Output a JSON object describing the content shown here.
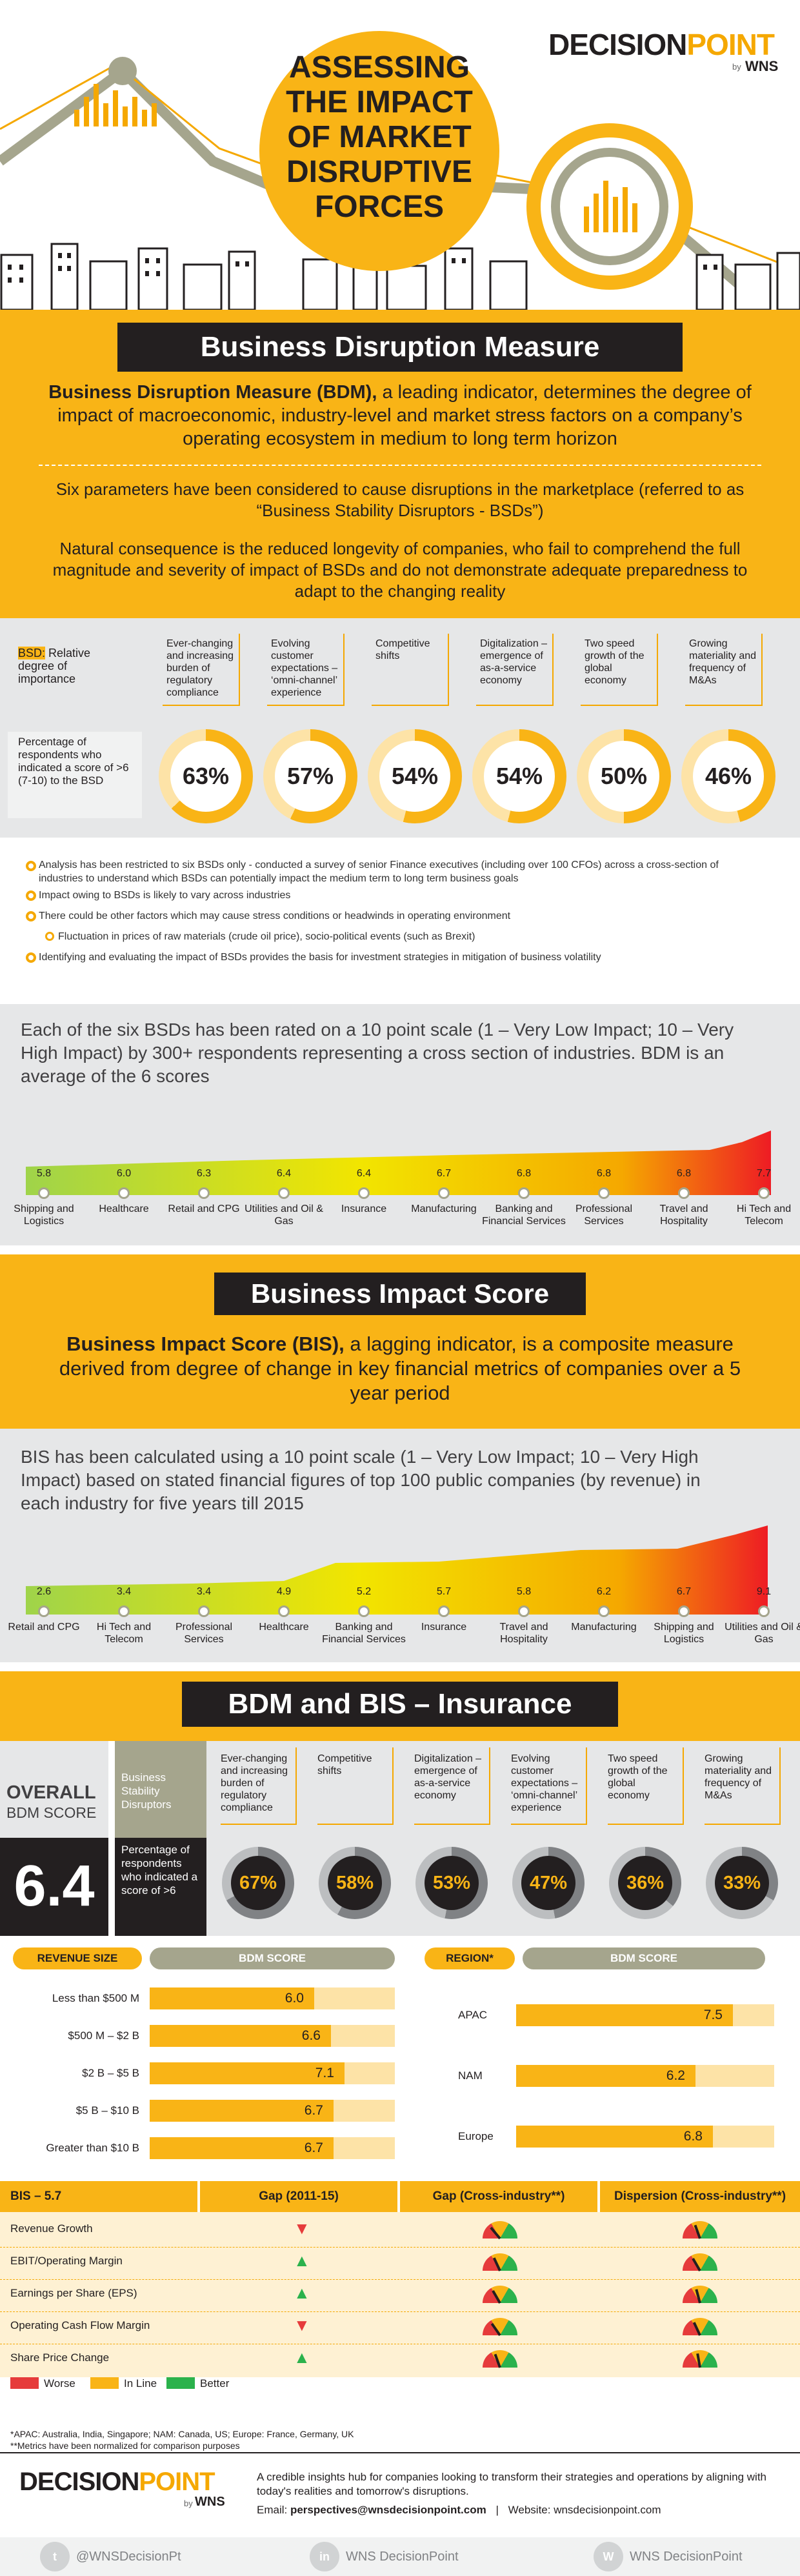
{
  "brand": {
    "name_a": "DECISION",
    "name_b": "POINT",
    "by": "by",
    "wns": "WNS"
  },
  "header": {
    "title": "ASSESSING THE IMPACT OF MARKET DISRUPTIVE FORCES"
  },
  "bdm_section": {
    "heading": "Business Disruption Measure",
    "intro_bold": "Business Disruption Measure (BDM),",
    "intro_rest": " a leading indicator, determines the degree of impact of macroeconomic, industry-level and market stress factors on a company’s operating ecosystem in medium to long term horizon",
    "para2": "Six parameters have been considered to cause disruptions in the marketplace (referred to as “Business Stability Disruptors - BSDs”)",
    "para3": "Natural consequence is the reduced longevity of companies, who fail to comprehend the full magnitude and severity of impact of BSDs and do not demonstrate adequate preparedness to adapt to the changing reality"
  },
  "bsd_panel": {
    "key_label": "BSD:",
    "key_rest": " Relative degree of importance",
    "pct_label": "Percentage of respondents who indicated a score of >6 (7-10) to the BSD",
    "items": [
      {
        "label": "Ever-changing and increasing burden of regulatory compliance",
        "pct": "63%",
        "value": 63
      },
      {
        "label": "Evolving customer expectations – ‘omni-channel’ experience",
        "pct": "57%",
        "value": 57
      },
      {
        "label": "Competitive shifts",
        "pct": "54%",
        "value": 54
      },
      {
        "label": "Digitalization – emergence of as-a-service economy",
        "pct": "54%",
        "value": 54
      },
      {
        "label": "Two speed growth of the global economy",
        "pct": "50%",
        "value": 50
      },
      {
        "label": "Growing materiality and frequency of M&As",
        "pct": "46%",
        "value": 46
      }
    ]
  },
  "notes": [
    "Analysis has been restricted to six BSDs only - conducted a survey of senior Finance executives (including over 100 CFOs) across a cross-section of industries to understand which BSDs can potentially impact the medium term to long term business goals",
    "Impact owing to BSDs is likely to vary across industries",
    "There could be other factors which may cause stress conditions or headwinds in operating environment",
    "Fluctuation in prices of raw materials (crude oil price), socio-political events (such as Brexit)",
    "Identifying and evaluating the impact of BSDs provides the basis for investment strategies in mitigation of business volatility"
  ],
  "bdm_scale": {
    "text": "Each of the six BSDs has been rated on a 10 point scale (1 – Very Low Impact; 10 – Very High Impact) by 300+ respondents representing a cross section of industries. BDM is an average of the 6 scores",
    "industries": [
      "Shipping and Logistics",
      "Healthcare",
      "Retail and CPG",
      "Utilities and Oil & Gas",
      "Insurance",
      "Manufacturing",
      "Banking and Financial Services",
      "Professional Services",
      "Travel and Hospitality",
      "Hi Tech and Telecom"
    ],
    "values": [
      "5.8",
      "6.0",
      "6.3",
      "6.4",
      "6.4",
      "6.7",
      "6.8",
      "6.8",
      "6.8",
      "7.7"
    ]
  },
  "bis_section": {
    "heading": "Business Impact Score",
    "intro_bold": "Business Impact Score (BIS),",
    "intro_rest": " a lagging indicator, is a composite measure derived from degree of change in key financial metrics of companies over a 5 year period"
  },
  "bis_scale": {
    "text": "BIS has been calculated using a 10 point scale (1 – Very Low Impact; 10 – Very High Impact) based on stated financial figures of top 100 public companies (by revenue) in each industry for five years till 2015",
    "industries": [
      "Retail and CPG",
      "Hi Tech and Telecom",
      "Professional Services",
      "Healthcare",
      "Banking and Financial Services",
      "Insurance",
      "Travel and Hospitality",
      "Manufacturing",
      "Shipping and Logistics",
      "Utilities and Oil & Gas"
    ],
    "values": [
      "2.6",
      "3.4",
      "3.4",
      "4.9",
      "5.2",
      "5.7",
      "5.8",
      "6.2",
      "6.7",
      "9.1"
    ]
  },
  "insurance": {
    "heading": "BDM and BIS – Insurance",
    "overall_label_1": "OVERALL",
    "overall_label_2": "BDM SCORE",
    "overall_score": "6.4",
    "bsd_label": "Business Stability Disruptors",
    "pct_label": "Percentage of respondents who indicated a score of >6",
    "items": [
      {
        "label": "Ever-changing and increasing burden of regulatory compliance",
        "pct": "67%",
        "value": 67
      },
      {
        "label": "Competitive shifts",
        "pct": "58%",
        "value": 58
      },
      {
        "label": "Digitalization – emergence of as-a-service economy",
        "pct": "53%",
        "value": 53
      },
      {
        "label": "Evolving customer expectations – ‘omni-channel’ experience",
        "pct": "47%",
        "value": 47
      },
      {
        "label": "Two speed growth of the global economy",
        "pct": "36%",
        "value": 36
      },
      {
        "label": "Growing materiality and frequency of M&As",
        "pct": "33%",
        "value": 33
      }
    ]
  },
  "revenue_chart": {
    "header_left": "REVENUE SIZE",
    "header_right": "BDM SCORE",
    "rows": [
      {
        "label": "Less than $500 M",
        "value": "6.0",
        "num": 6.0
      },
      {
        "label": "$500 M – $2 B",
        "value": "6.6",
        "num": 6.6
      },
      {
        "label": "$2 B – $5 B",
        "value": "7.1",
        "num": 7.1
      },
      {
        "label": "$5 B – $10 B",
        "value": "6.7",
        "num": 6.7
      },
      {
        "label": "Greater than $10 B",
        "value": "6.7",
        "num": 6.7
      }
    ]
  },
  "region_chart": {
    "header_left": "REGION*",
    "header_right": "BDM SCORE",
    "rows": [
      {
        "label": "APAC",
        "value": "7.5",
        "num": 7.5
      },
      {
        "label": "NAM",
        "value": "6.2",
        "num": 6.2
      },
      {
        "label": "Europe",
        "value": "6.8",
        "num": 6.8
      }
    ]
  },
  "bis_table": {
    "col1": "BIS – 5.7",
    "col2": "Gap (2011-15)",
    "col3": "Gap (Cross-industry**)",
    "col4": "Dispersion (Cross-industry**)",
    "rows": [
      {
        "metric": "Revenue Growth",
        "gap": "worse"
      },
      {
        "metric": "EBIT/Operating Margin",
        "gap": "better"
      },
      {
        "metric": "Earnings per Share (EPS)",
        "gap": "better"
      },
      {
        "metric": "Operating Cash Flow Margin",
        "gap": "worse"
      },
      {
        "metric": "Share Price Change",
        "gap": "better"
      }
    ],
    "legend": [
      "Worse",
      "In Line",
      "Better"
    ],
    "colors": {
      "worse": "#e63b3b",
      "inline": "#f9b416",
      "better": "#2bb24c"
    }
  },
  "footnotes": [
    "*APAC: Australia, India, Singapore; NAM: Canada, US; Europe: France, Germany, UK",
    "**Metrics have been normalized for comparison purposes"
  ],
  "footer": {
    "tagline": "A credible insights hub for companies looking to transform their strategies and operations by aligning with today's realities and tomorrow's disruptions.",
    "email_label": "Email: ",
    "email": "perspectives@wnsdecisionpoint.com",
    "sep": "|",
    "website": "Website: wnsdecisionpoint.com",
    "twitter": "@WNSDecisionPt",
    "linkedin": "WNS DecisionPoint",
    "other": "WNS DecisionPoint"
  },
  "colors": {
    "accent": "#f9b416",
    "dark": "#231f20",
    "olive": "#a5a58d",
    "grey": "#e6e7e8"
  }
}
